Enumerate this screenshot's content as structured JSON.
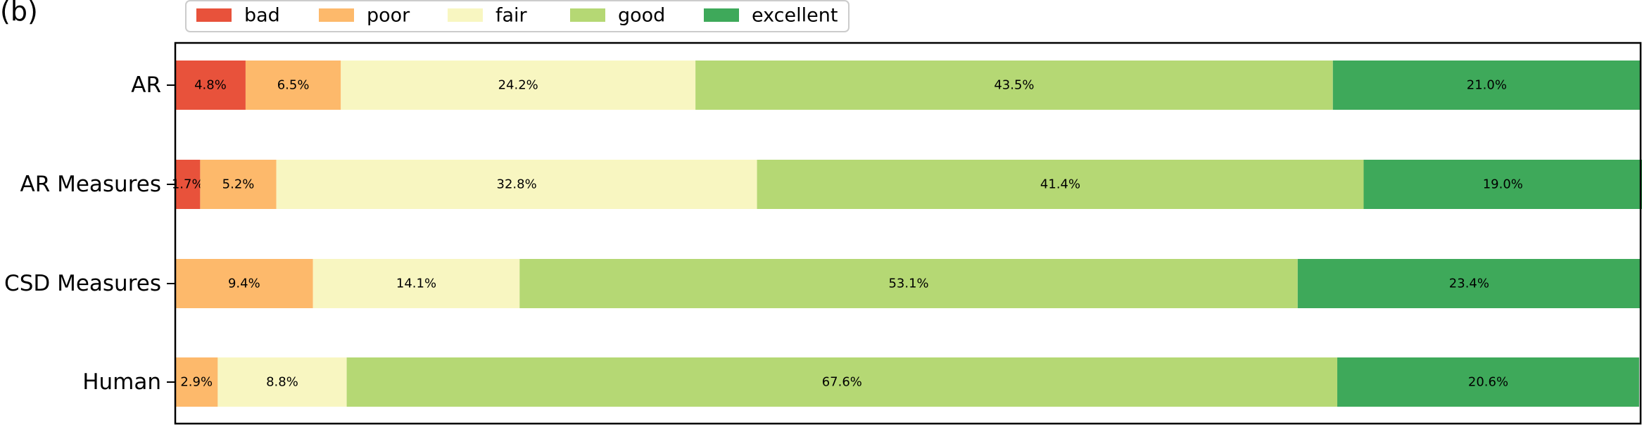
{
  "panel_label": "(b)",
  "chart_data": {
    "type": "bar",
    "orientation": "horizontal",
    "stacked": true,
    "normalized_to_percent": true,
    "categories": [
      "AR",
      "AR Measures",
      "CSD Measures",
      "Human"
    ],
    "series": [
      {
        "name": "bad",
        "color": "#e8523b",
        "values": [
          4.8,
          1.7,
          0.0,
          0.0
        ]
      },
      {
        "name": "poor",
        "color": "#fdb96b",
        "values": [
          6.5,
          5.2,
          9.4,
          2.9
        ]
      },
      {
        "name": "fair",
        "color": "#f8f6c1",
        "values": [
          24.2,
          32.8,
          14.1,
          8.8
        ]
      },
      {
        "name": "good",
        "color": "#b5d874",
        "values": [
          43.5,
          41.4,
          53.1,
          67.6
        ]
      },
      {
        "name": "excellent",
        "color": "#3ea95a",
        "values": [
          21.0,
          19.0,
          23.4,
          20.6
        ]
      }
    ],
    "xlim": [
      0,
      100
    ],
    "grid": false,
    "legend_position": "top",
    "data_labels": true
  }
}
